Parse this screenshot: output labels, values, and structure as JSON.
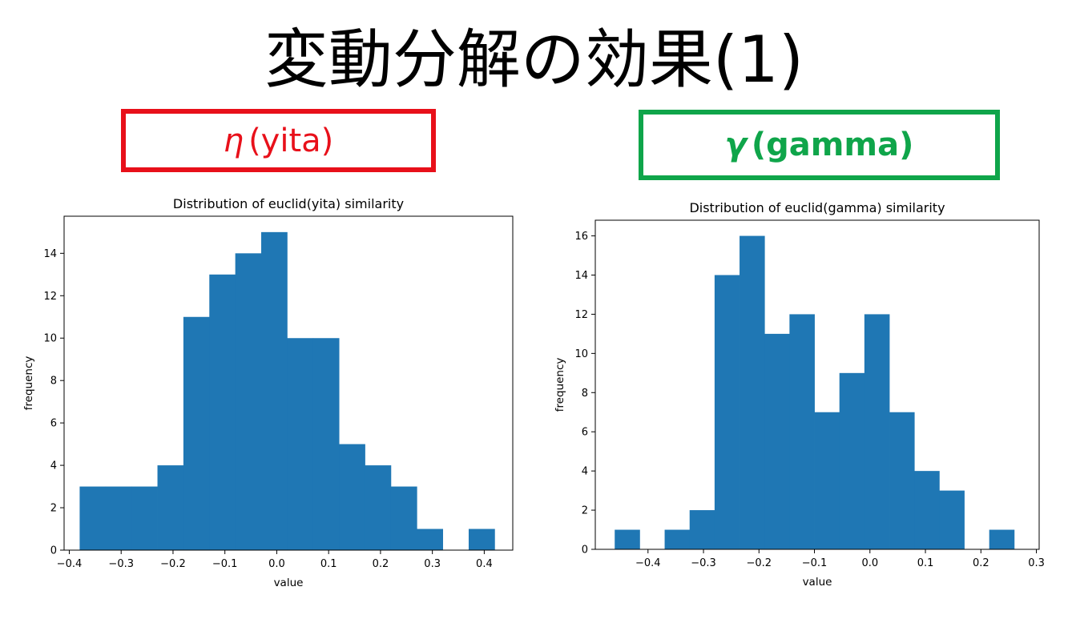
{
  "slide_title": "変動分解の効果(1)",
  "labels": {
    "yita": {
      "greek": "η",
      "text": "(yita)",
      "color": "#e8101a"
    },
    "gamma": {
      "greek": "γ",
      "text": "(gamma)",
      "color": "#0fa54a"
    }
  },
  "chart_data": [
    {
      "type": "bar",
      "title": "Distribution of euclid(yita) similarity",
      "xlabel": "value",
      "ylabel": "frequency",
      "xlim": [
        -0.41,
        0.455
      ],
      "ylim": [
        0,
        15.75
      ],
      "xticks": [
        -0.4,
        -0.3,
        -0.2,
        -0.1,
        0.0,
        0.1,
        0.2,
        0.3,
        0.4
      ],
      "xtick_labels": [
        "−0.4",
        "−0.3",
        "−0.2",
        "−0.1",
        "0.0",
        "0.1",
        "0.2",
        "0.3",
        "0.4"
      ],
      "yticks": [
        0,
        2,
        4,
        6,
        8,
        10,
        12,
        14
      ],
      "bin_edges": [
        -0.38,
        -0.33,
        -0.28,
        -0.23,
        -0.18,
        -0.13,
        -0.08,
        -0.03,
        0.02,
        0.07,
        0.12,
        0.17,
        0.22,
        0.27,
        0.32,
        0.37,
        0.42
      ],
      "values": [
        3,
        3,
        3,
        4,
        11,
        13,
        14,
        15,
        10,
        10,
        5,
        4,
        3,
        1,
        0,
        1
      ],
      "bar_color": "#1f77b4",
      "grid": false
    },
    {
      "type": "bar",
      "title": "Distribution of euclid(gamma) similarity",
      "xlabel": "value",
      "ylabel": "frequency",
      "xlim": [
        -0.495,
        0.305
      ],
      "ylim": [
        0,
        16.8
      ],
      "xticks": [
        -0.4,
        -0.3,
        -0.2,
        -0.1,
        0.0,
        0.1,
        0.2,
        0.3
      ],
      "xtick_labels": [
        "−0.4",
        "−0.3",
        "−0.2",
        "−0.1",
        "0.0",
        "0.1",
        "0.2",
        "0.3"
      ],
      "yticks": [
        0,
        2,
        4,
        6,
        8,
        10,
        12,
        14,
        16
      ],
      "bin_edges": [
        -0.46,
        -0.415,
        -0.37,
        -0.325,
        -0.28,
        -0.235,
        -0.19,
        -0.145,
        -0.1,
        -0.055,
        -0.01,
        0.035,
        0.08,
        0.125,
        0.17,
        0.215,
        0.26
      ],
      "values": [
        1,
        0,
        1,
        2,
        14,
        16,
        11,
        12,
        7,
        9,
        12,
        7,
        4,
        3,
        0,
        1
      ],
      "bar_color": "#1f77b4",
      "grid": false
    }
  ]
}
